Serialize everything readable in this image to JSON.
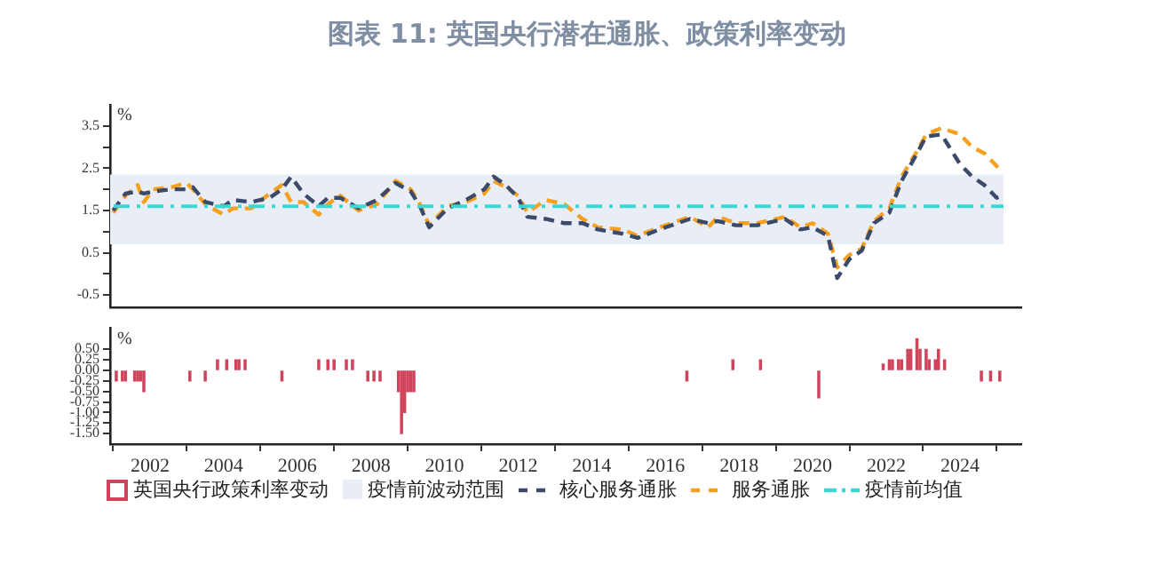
{
  "chart_data": [
    {
      "type": "line",
      "title": "图表 11: 英国央行潜在通胀、政策利率变动",
      "ylabel": "%",
      "x": [
        "2001-01",
        "2001-05",
        "2001-09",
        "2001-11",
        "2002-02",
        "2002-08",
        "2003-01",
        "2003-03",
        "2003-07",
        "2004-01",
        "2004-04",
        "2004-10",
        "2005-04",
        "2005-08",
        "2005-11",
        "2006-03",
        "2006-08",
        "2006-11",
        "2007-03",
        "2007-09",
        "2008-03",
        "2008-09",
        "2009-02",
        "2009-05",
        "2009-08",
        "2010-02",
        "2010-08",
        "2011-02",
        "2011-05",
        "2011-09",
        "2012-01",
        "2012-04",
        "2012-10",
        "2013-04",
        "2013-10",
        "2014-03",
        "2014-11",
        "2015-04",
        "2015-11",
        "2016-05",
        "2016-09",
        "2017-03",
        "2017-06",
        "2017-12",
        "2018-07",
        "2019-04",
        "2019-09",
        "2020-01",
        "2020-06",
        "2020-09",
        "2021-01",
        "2021-05",
        "2021-09",
        "2022-02",
        "2022-06",
        "2022-11",
        "2023-02",
        "2023-07",
        "2024-01",
        "2024-05",
        "2024-09",
        "2025-01",
        "2025-03"
      ],
      "series": [
        {
          "name": "核心服务通胀",
          "color": "#3b4a6b",
          "values": [
            1.5,
            1.9,
            1.95,
            1.9,
            1.95,
            2.0,
            2.0,
            2.05,
            1.7,
            1.6,
            1.75,
            1.7,
            1.8,
            2.0,
            2.3,
            1.9,
            1.6,
            1.8,
            1.8,
            1.55,
            1.75,
            2.15,
            1.95,
            1.6,
            1.1,
            1.55,
            1.75,
            2.0,
            2.3,
            2.1,
            1.8,
            1.35,
            1.3,
            1.2,
            1.2,
            1.05,
            0.95,
            0.85,
            1.05,
            1.2,
            1.3,
            1.2,
            1.25,
            1.15,
            1.15,
            1.3,
            1.05,
            1.1,
            0.9,
            -0.1,
            0.35,
            0.55,
            1.2,
            1.45,
            2.2,
            2.85,
            3.25,
            3.3,
            2.6,
            2.3,
            2.1,
            1.8,
            1.85
          ]
        },
        {
          "name": "服务通胀",
          "color": "#f5a01f",
          "values": [
            1.45,
            1.85,
            2.1,
            1.7,
            2.0,
            2.05,
            2.15,
            2.0,
            1.65,
            1.4,
            1.55,
            1.55,
            1.9,
            2.1,
            1.7,
            1.7,
            1.4,
            1.65,
            1.85,
            1.5,
            1.65,
            2.2,
            2.0,
            1.65,
            1.15,
            1.6,
            1.7,
            1.9,
            2.2,
            2.05,
            1.85,
            1.45,
            1.75,
            1.65,
            1.3,
            1.1,
            1.05,
            0.9,
            1.1,
            1.25,
            1.35,
            1.1,
            1.35,
            1.2,
            1.2,
            1.35,
            1.1,
            1.2,
            0.95,
            0.15,
            0.45,
            0.6,
            1.25,
            1.55,
            2.3,
            2.9,
            3.3,
            3.45,
            3.3,
            3.0,
            2.85,
            2.55,
            2.4
          ]
        }
      ],
      "bands": [
        {
          "axis": "y",
          "from": 0.7,
          "to": 2.35,
          "label": "疫情前波动范围",
          "color": "#e9eef6"
        }
      ],
      "ref_lines": [
        {
          "axis": "y",
          "value": 1.6,
          "label": "疫情前均值",
          "color": "#3ed8d4",
          "line_style": "dashed"
        }
      ],
      "xlim": [
        "2000-12",
        "2025-09"
      ],
      "ylim": [
        -0.8,
        4
      ],
      "yticks": [
        {
          "value": -0.5,
          "label": "-0.5"
        },
        {
          "value": 0,
          "label": null
        },
        0.5,
        {
          "value": 1,
          "label": null
        },
        1.5,
        {
          "value": 2,
          "label": null
        },
        2.5,
        {
          "value": 3,
          "label": null
        },
        3.5
      ],
      "tick_labels": "y",
      "line_style": "dashed",
      "marker": "none",
      "legend": "bottom"
    },
    {
      "type": "bar",
      "ylabel": "%",
      "x": [
        "2001-02",
        "2001-04",
        "2001-05",
        "2001-08",
        "2001-09",
        "2001-10",
        "2001-11",
        "2003-02",
        "2003-07",
        "2003-11",
        "2004-02",
        "2004-05",
        "2004-06",
        "2004-08",
        "2005-08",
        "2006-08",
        "2006-11",
        "2007-01",
        "2007-05",
        "2007-07",
        "2007-12",
        "2008-02",
        "2008-04",
        "2008-10",
        "2008-11",
        "2008-12",
        "2009-01",
        "2009-02",
        "2009-03",
        "2016-08",
        "2017-11",
        "2018-08",
        "2020-03",
        "2021-12",
        "2022-02",
        "2022-03",
        "2022-05",
        "2022-06",
        "2022-08",
        "2022-09",
        "2022-11",
        "2022-12",
        "2023-02",
        "2023-03",
        "2023-05",
        "2023-06",
        "2023-08",
        "2024-08",
        "2024-11",
        "2025-02"
      ],
      "series": [
        {
          "name": "英国央行政策利率变动",
          "color": "#d0435a",
          "values": [
            -0.25,
            -0.25,
            -0.25,
            -0.25,
            -0.25,
            -0.25,
            -0.5,
            -0.25,
            -0.25,
            0.25,
            0.25,
            0.25,
            0.25,
            0.25,
            -0.25,
            0.25,
            0.25,
            0.25,
            0.25,
            0.25,
            -0.25,
            -0.25,
            -0.25,
            -0.5,
            -1.5,
            -1.0,
            -0.5,
            -0.5,
            -0.5,
            -0.25,
            0.25,
            0.25,
            -0.65,
            0.15,
            0.25,
            0.25,
            0.25,
            0.25,
            0.5,
            0.5,
            0.75,
            0.5,
            0.5,
            0.25,
            0.25,
            0.5,
            0.25,
            -0.25,
            -0.25,
            -0.25
          ]
        }
      ],
      "xlim": [
        "2000-12",
        "2025-09"
      ],
      "ylim": [
        -1.75,
        1.0
      ],
      "xticks": [
        "2002",
        "2004",
        "2006",
        "2008",
        "2010",
        "2012",
        "2014",
        "2016",
        "2018",
        "2020",
        "2022",
        "2024"
      ],
      "yticks": [
        {
          "value": -1.5,
          "label": "-1.50"
        },
        {
          "value": -1.25,
          "label": "-1.25"
        },
        {
          "value": -1,
          "label": "-1.00"
        },
        {
          "value": -0.75,
          "label": "-0.75"
        },
        {
          "value": -0.5,
          "label": "-0.50"
        },
        {
          "value": -0.25,
          "label": "-0.25"
        },
        {
          "value": 0,
          "label": "0.00"
        },
        {
          "value": 0.25,
          "label": "0.25"
        },
        {
          "value": 0.5,
          "label": "0.50"
        }
      ],
      "legend": "bottom"
    }
  ]
}
